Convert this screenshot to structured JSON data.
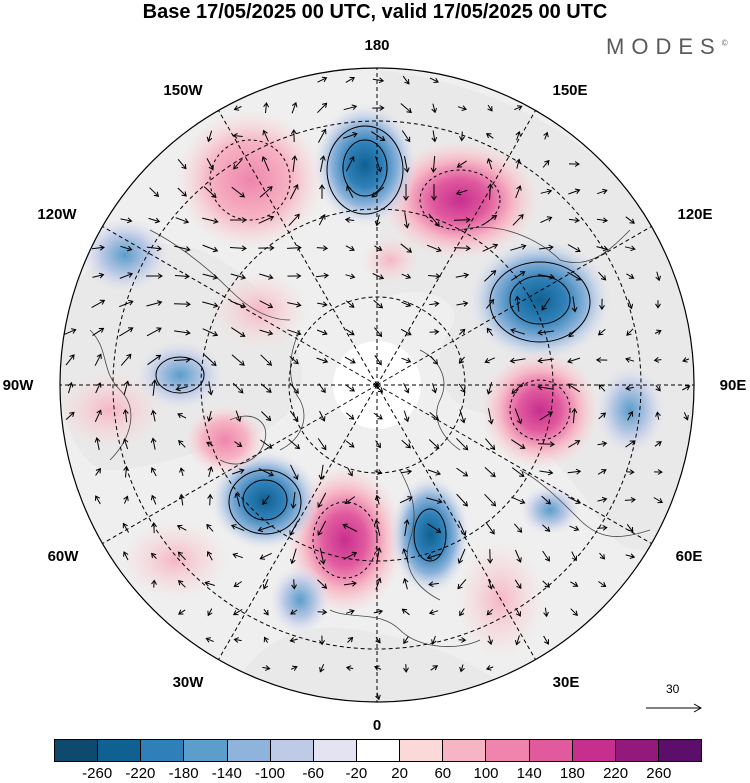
{
  "title": "Base 17/05/2025 00 UTC, valid 17/05/2025 00 UTC",
  "brand": "MODES",
  "brand_mark": "©",
  "map": {
    "projection": "north-polar-stereographic",
    "longitude_labels": {
      "top": "180",
      "top_left": "150W",
      "top_right": "150E",
      "upper_left": "120W",
      "upper_right": "120E",
      "left": "90W",
      "right": "90E",
      "lower_left": "60W",
      "lower_right": "60E",
      "bottom_left": "30W",
      "bottom_right": "30E",
      "bottom": "0"
    },
    "reference_vector_label": "30",
    "colors": {
      "land_gray": "#e8e8e8",
      "ocean_white": "#ffffff",
      "coastline": "#444444"
    }
  },
  "colorbar": {
    "tick_labels": [
      "-260",
      "-220",
      "-180",
      "-140",
      "-100",
      "-60",
      "-20",
      "20",
      "60",
      "100",
      "140",
      "180",
      "220",
      "260"
    ],
    "colors": [
      "#0e4a6e",
      "#0f6192",
      "#2f80b8",
      "#5b9dcb",
      "#8fb4db",
      "#bfcbe6",
      "#e3e3f1",
      "#ffffff",
      "#fbd9d9",
      "#f6b4c4",
      "#ef85ad",
      "#e15a9e",
      "#c72f8f",
      "#94197c",
      "#5b0f6b"
    ]
  }
}
